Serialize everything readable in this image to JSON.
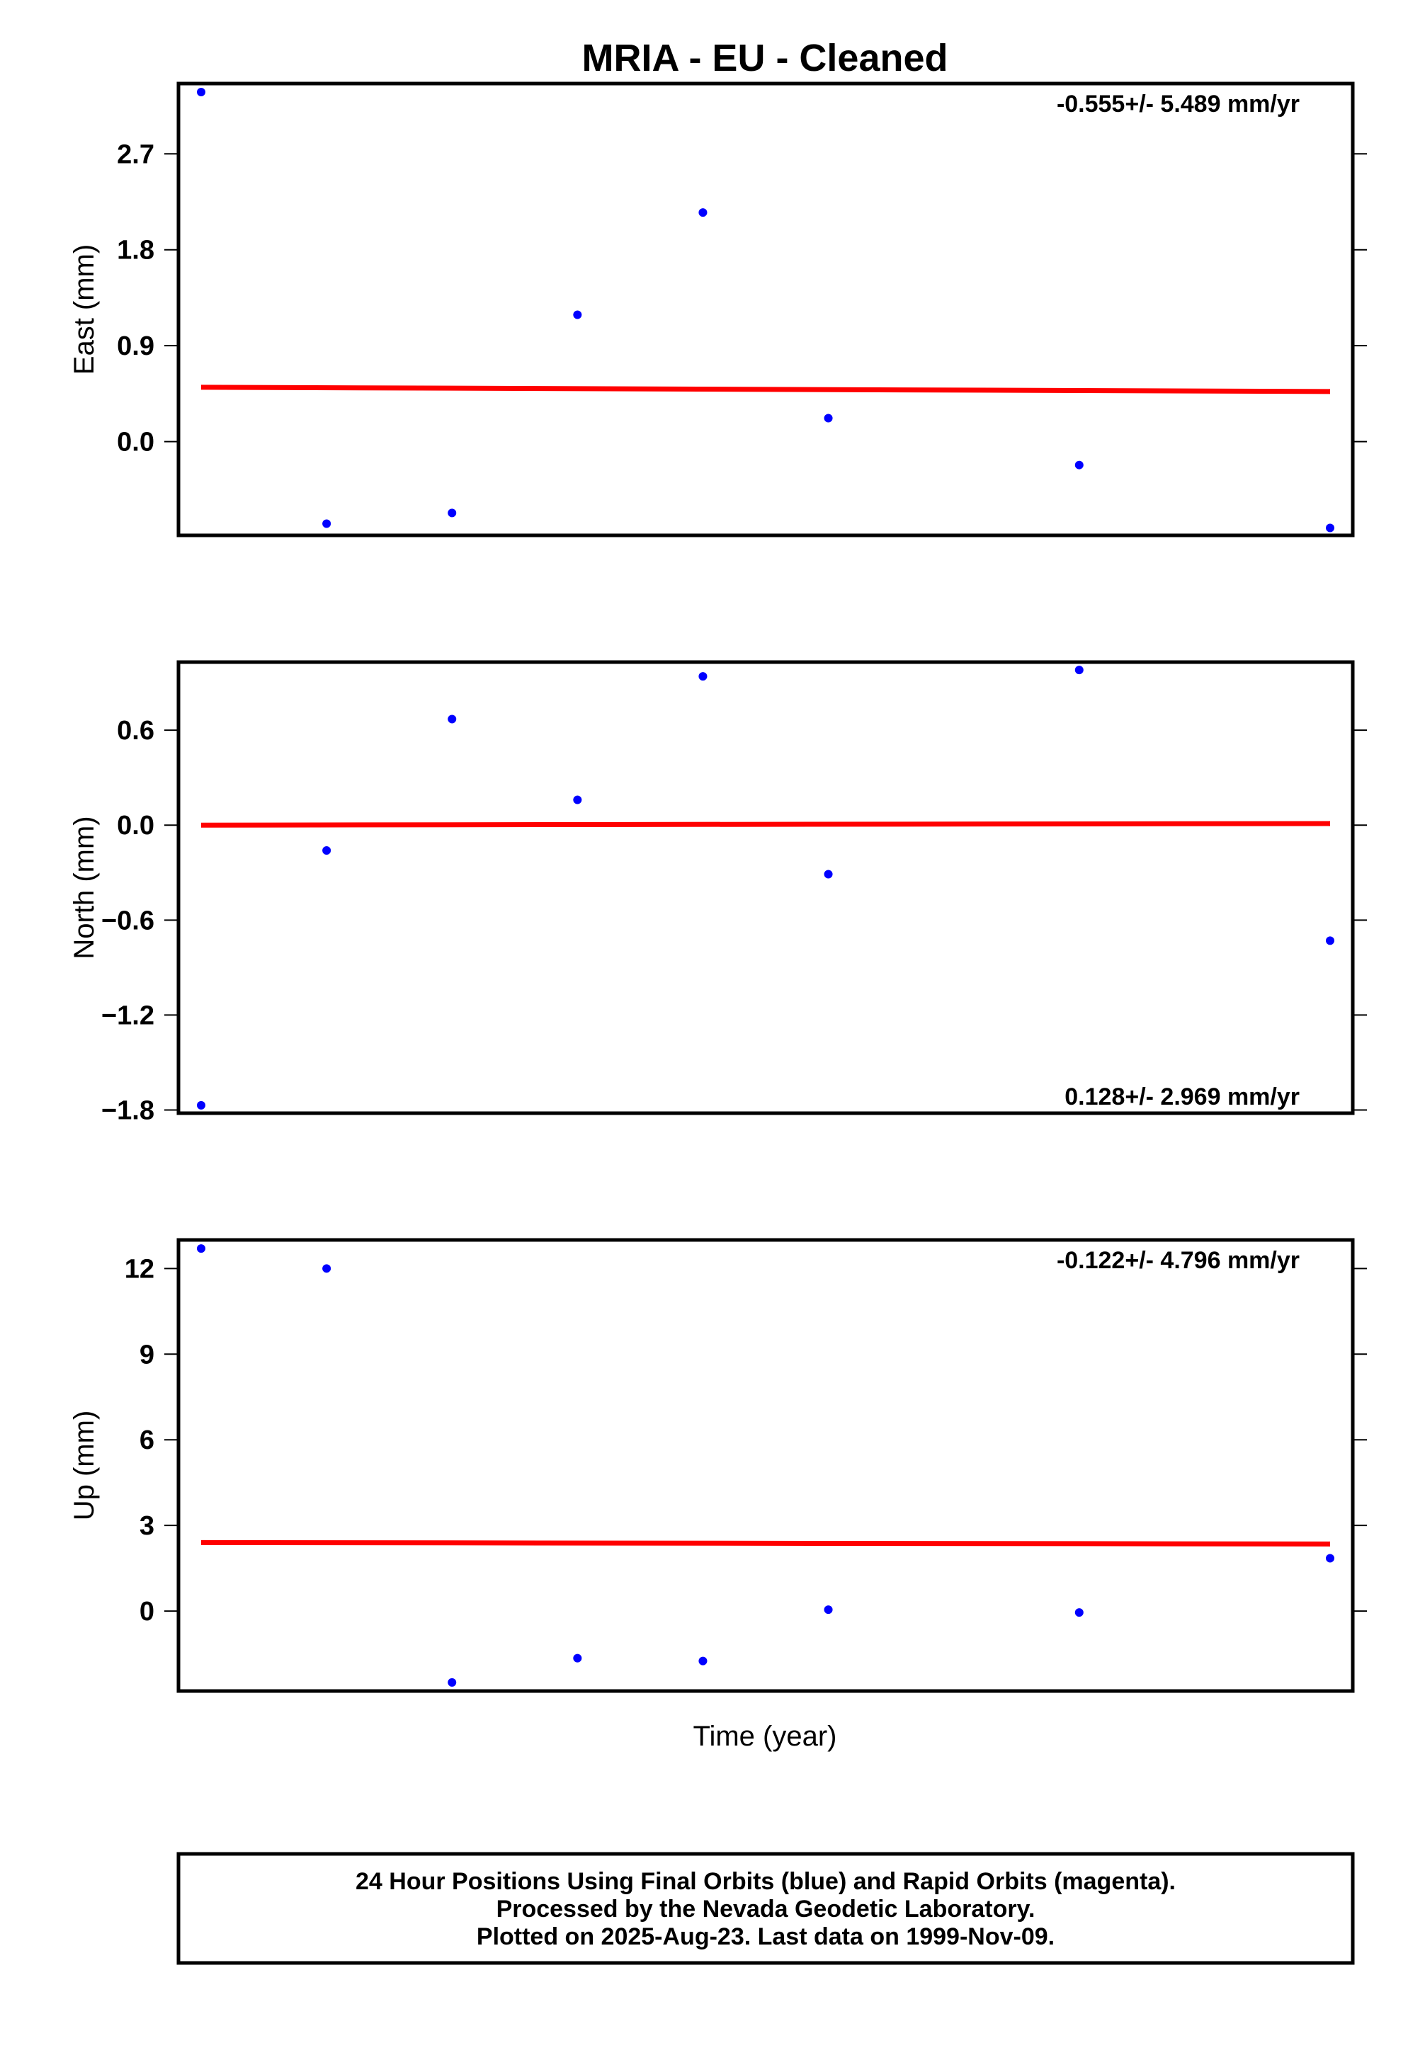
{
  "chart_data": {
    "type": "scatter",
    "title": "MRIA  - EU - Cleaned",
    "xlabel": "Time (year)",
    "colors": {
      "points": "#0000ff",
      "trend": "#ff0000"
    },
    "panels": [
      {
        "ylabel": "East (mm)",
        "ylim": [
          -0.88,
          3.36
        ],
        "yticks": [
          0.0,
          0.9,
          1.8,
          2.7
        ],
        "ytick_labels": [
          "0.0",
          "0.9",
          "1.8",
          "2.7"
        ],
        "rate_label": "-0.555+/- 5.489 mm/yr",
        "rate_position": "top-right",
        "series": {
          "x": [
            0,
            1,
            2,
            3,
            4,
            5,
            7,
            9
          ],
          "values": [
            3.28,
            -0.77,
            -0.67,
            1.19,
            2.15,
            0.22,
            -0.22,
            -0.81
          ]
        },
        "trend": {
          "x": [
            0,
            9
          ],
          "values": [
            0.51,
            0.47
          ]
        }
      },
      {
        "ylabel": "North (mm)",
        "ylim": [
          -1.82,
          1.03
        ],
        "yticks": [
          -1.8,
          -1.2,
          -0.6,
          0.0,
          0.6
        ],
        "ytick_labels": [
          "−1.8",
          "−1.2",
          "−0.6",
          "0.0",
          "0.6"
        ],
        "rate_label": "0.128+/- 2.969 mm/yr",
        "rate_position": "bottom-right",
        "series": {
          "x": [
            0,
            1,
            2,
            3,
            4,
            5,
            7,
            9
          ],
          "values": [
            -1.77,
            -0.16,
            0.67,
            0.16,
            0.94,
            -0.31,
            0.98,
            -0.73
          ]
        },
        "trend": {
          "x": [
            0,
            9
          ],
          "values": [
            0.0,
            0.01
          ]
        }
      },
      {
        "ylabel": "Up (mm)",
        "ylim": [
          -2.8,
          13.0
        ],
        "yticks": [
          0,
          3,
          6,
          9,
          12
        ],
        "ytick_labels": [
          "0",
          "3",
          "6",
          "9",
          "12"
        ],
        "rate_label": "-0.122+/- 4.796 mm/yr",
        "rate_position": "top-right",
        "series": {
          "x": [
            0,
            1,
            2,
            3,
            4,
            5,
            7,
            9
          ],
          "values": [
            12.7,
            12.0,
            -2.5,
            -1.65,
            -1.75,
            0.05,
            -0.05,
            1.85
          ]
        },
        "trend": {
          "x": [
            0,
            9
          ],
          "values": [
            2.4,
            2.35
          ]
        }
      }
    ],
    "footer": [
      "24 Hour Positions Using Final Orbits (blue) and Rapid Orbits (magenta).",
      "Processed by the Nevada Geodetic Laboratory.",
      "Plotted on 2025-Aug-23. Last data on 1999-Nov-09."
    ]
  }
}
